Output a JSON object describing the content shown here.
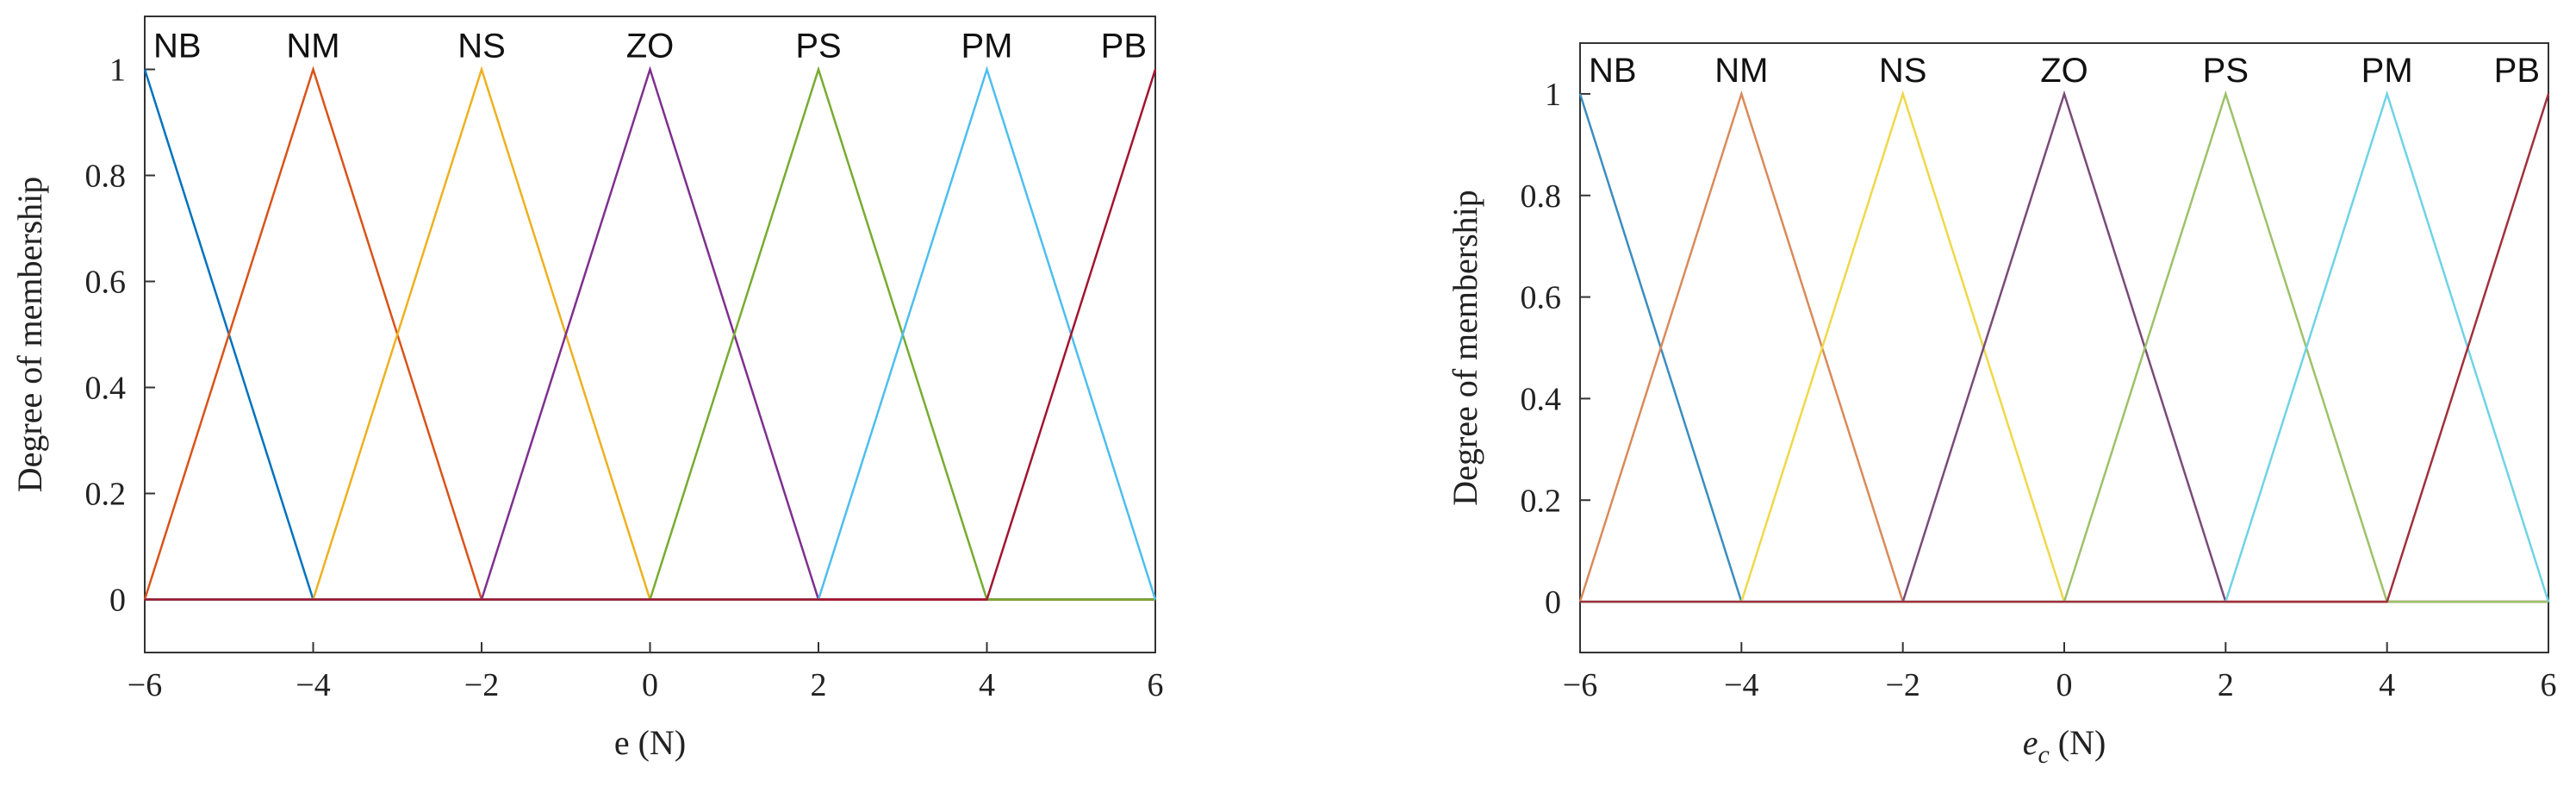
{
  "chart_data": [
    {
      "type": "line",
      "y_label": "Degree of membership",
      "x_label": "e (N)",
      "xlim": [
        -6,
        6
      ],
      "ylim": [
        -0.1,
        1.1
      ],
      "xticks": [
        {
          "value": -6,
          "label": "−6"
        },
        {
          "value": -4,
          "label": "−4"
        },
        {
          "value": -2,
          "label": "−2"
        },
        0,
        2,
        4,
        6
      ],
      "yticks": [
        0,
        0.2,
        0.4,
        0.6,
        0.8,
        1
      ],
      "series": [
        {
          "name": "NB",
          "color": "#0072bd",
          "x": [
            -6,
            -4,
            6
          ],
          "values": [
            1,
            0,
            0
          ]
        },
        {
          "name": "NM",
          "color": "#d95319",
          "x": [
            -6,
            -4,
            -2,
            6
          ],
          "values": [
            0,
            1,
            0,
            0
          ]
        },
        {
          "name": "NS",
          "color": "#edb120",
          "x": [
            -6,
            -4,
            -2,
            0,
            6
          ],
          "values": [
            0,
            0,
            1,
            0,
            0
          ]
        },
        {
          "name": "ZO",
          "color": "#7e2f8e",
          "x": [
            -6,
            -2,
            0,
            2,
            6
          ],
          "values": [
            0,
            0,
            1,
            0,
            0
          ]
        },
        {
          "name": "PS",
          "color": "#77ac30",
          "x": [
            -6,
            0,
            2,
            4,
            6
          ],
          "values": [
            0,
            0,
            1,
            0,
            0
          ]
        },
        {
          "name": "PM",
          "color": "#4dbeee",
          "x": [
            -6,
            2,
            4,
            6
          ],
          "values": [
            0,
            0,
            1,
            0
          ]
        },
        {
          "name": "PB",
          "color": "#a2142f",
          "x": [
            -6,
            4,
            6
          ],
          "values": [
            0,
            0,
            1
          ]
        }
      ]
    },
    {
      "type": "line",
      "y_label": "Degree of membership",
      "x_label": "e",
      "x_label_sub": "c",
      "x_label_unit": "(N)",
      "xlim": [
        -6,
        6
      ],
      "ylim": [
        -0.1,
        1.1
      ],
      "xticks": [
        {
          "value": -6,
          "label": "−6"
        },
        {
          "value": -4,
          "label": "−4"
        },
        {
          "value": -2,
          "label": "−2"
        },
        0,
        2,
        4,
        6
      ],
      "yticks": [
        0,
        0.2,
        0.4,
        0.6,
        0.8,
        1
      ],
      "series": [
        {
          "name": "NB",
          "color": "#3a8dc0",
          "x": [
            -6,
            -4,
            6
          ],
          "values": [
            1,
            0,
            0
          ]
        },
        {
          "name": "NM",
          "color": "#d98a5a",
          "x": [
            -6,
            -4,
            -2,
            6
          ],
          "values": [
            0,
            1,
            0,
            0
          ]
        },
        {
          "name": "NS",
          "color": "#f0d84a",
          "x": [
            -6,
            -4,
            -2,
            0,
            6
          ],
          "values": [
            0,
            0,
            1,
            0,
            0
          ]
        },
        {
          "name": "ZO",
          "color": "#7a4a78",
          "x": [
            -6,
            -2,
            0,
            2,
            6
          ],
          "values": [
            0,
            0,
            1,
            0,
            0
          ]
        },
        {
          "name": "PS",
          "color": "#9cc26a",
          "x": [
            -6,
            0,
            2,
            4,
            6
          ],
          "values": [
            0,
            0,
            1,
            0,
            0
          ]
        },
        {
          "name": "PM",
          "color": "#6fd3e6",
          "x": [
            -6,
            2,
            4,
            6
          ],
          "values": [
            0,
            0,
            1,
            0
          ]
        },
        {
          "name": "PB",
          "color": "#a0303c",
          "x": [
            -6,
            4,
            6
          ],
          "values": [
            0,
            0,
            1
          ]
        }
      ]
    }
  ]
}
